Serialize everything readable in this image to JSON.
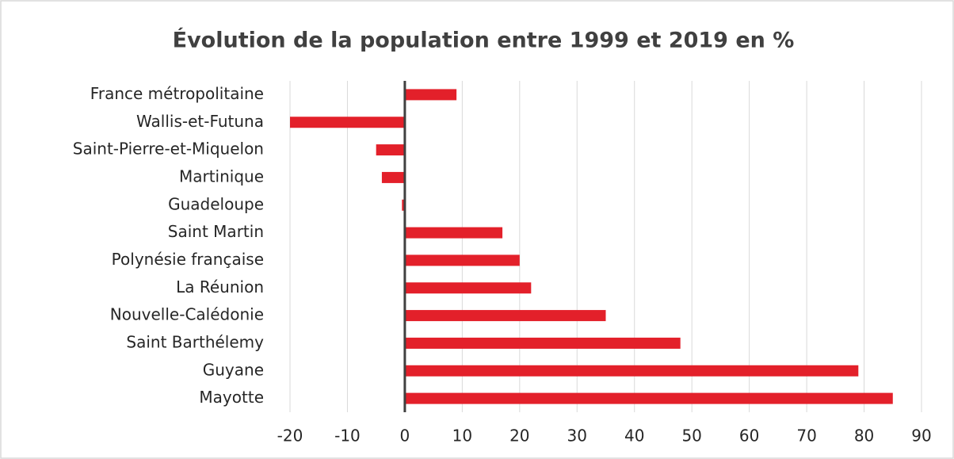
{
  "chart_data": {
    "type": "bar",
    "orientation": "horizontal",
    "title": "Évolution de la population entre 1999 et 2019 en %",
    "categories": [
      "France métropolitaine",
      "Wallis-et-Futuna",
      "Saint-Pierre-et-Miquelon",
      "Martinique",
      "Guadeloupe",
      "Saint Martin",
      "Polynésie française",
      "La Réunion",
      "Nouvelle-Calédonie",
      "Saint Barthélemy",
      "Guyane",
      "Mayotte"
    ],
    "values": [
      9,
      -20,
      -5,
      -4,
      -0.5,
      17,
      20,
      22,
      35,
      48,
      79,
      85
    ],
    "color": "#e3202a",
    "xlim": [
      -20,
      90
    ],
    "xticks": [
      -20,
      -10,
      0,
      10,
      20,
      30,
      40,
      50,
      60,
      70,
      80,
      90
    ],
    "grid": true
  }
}
